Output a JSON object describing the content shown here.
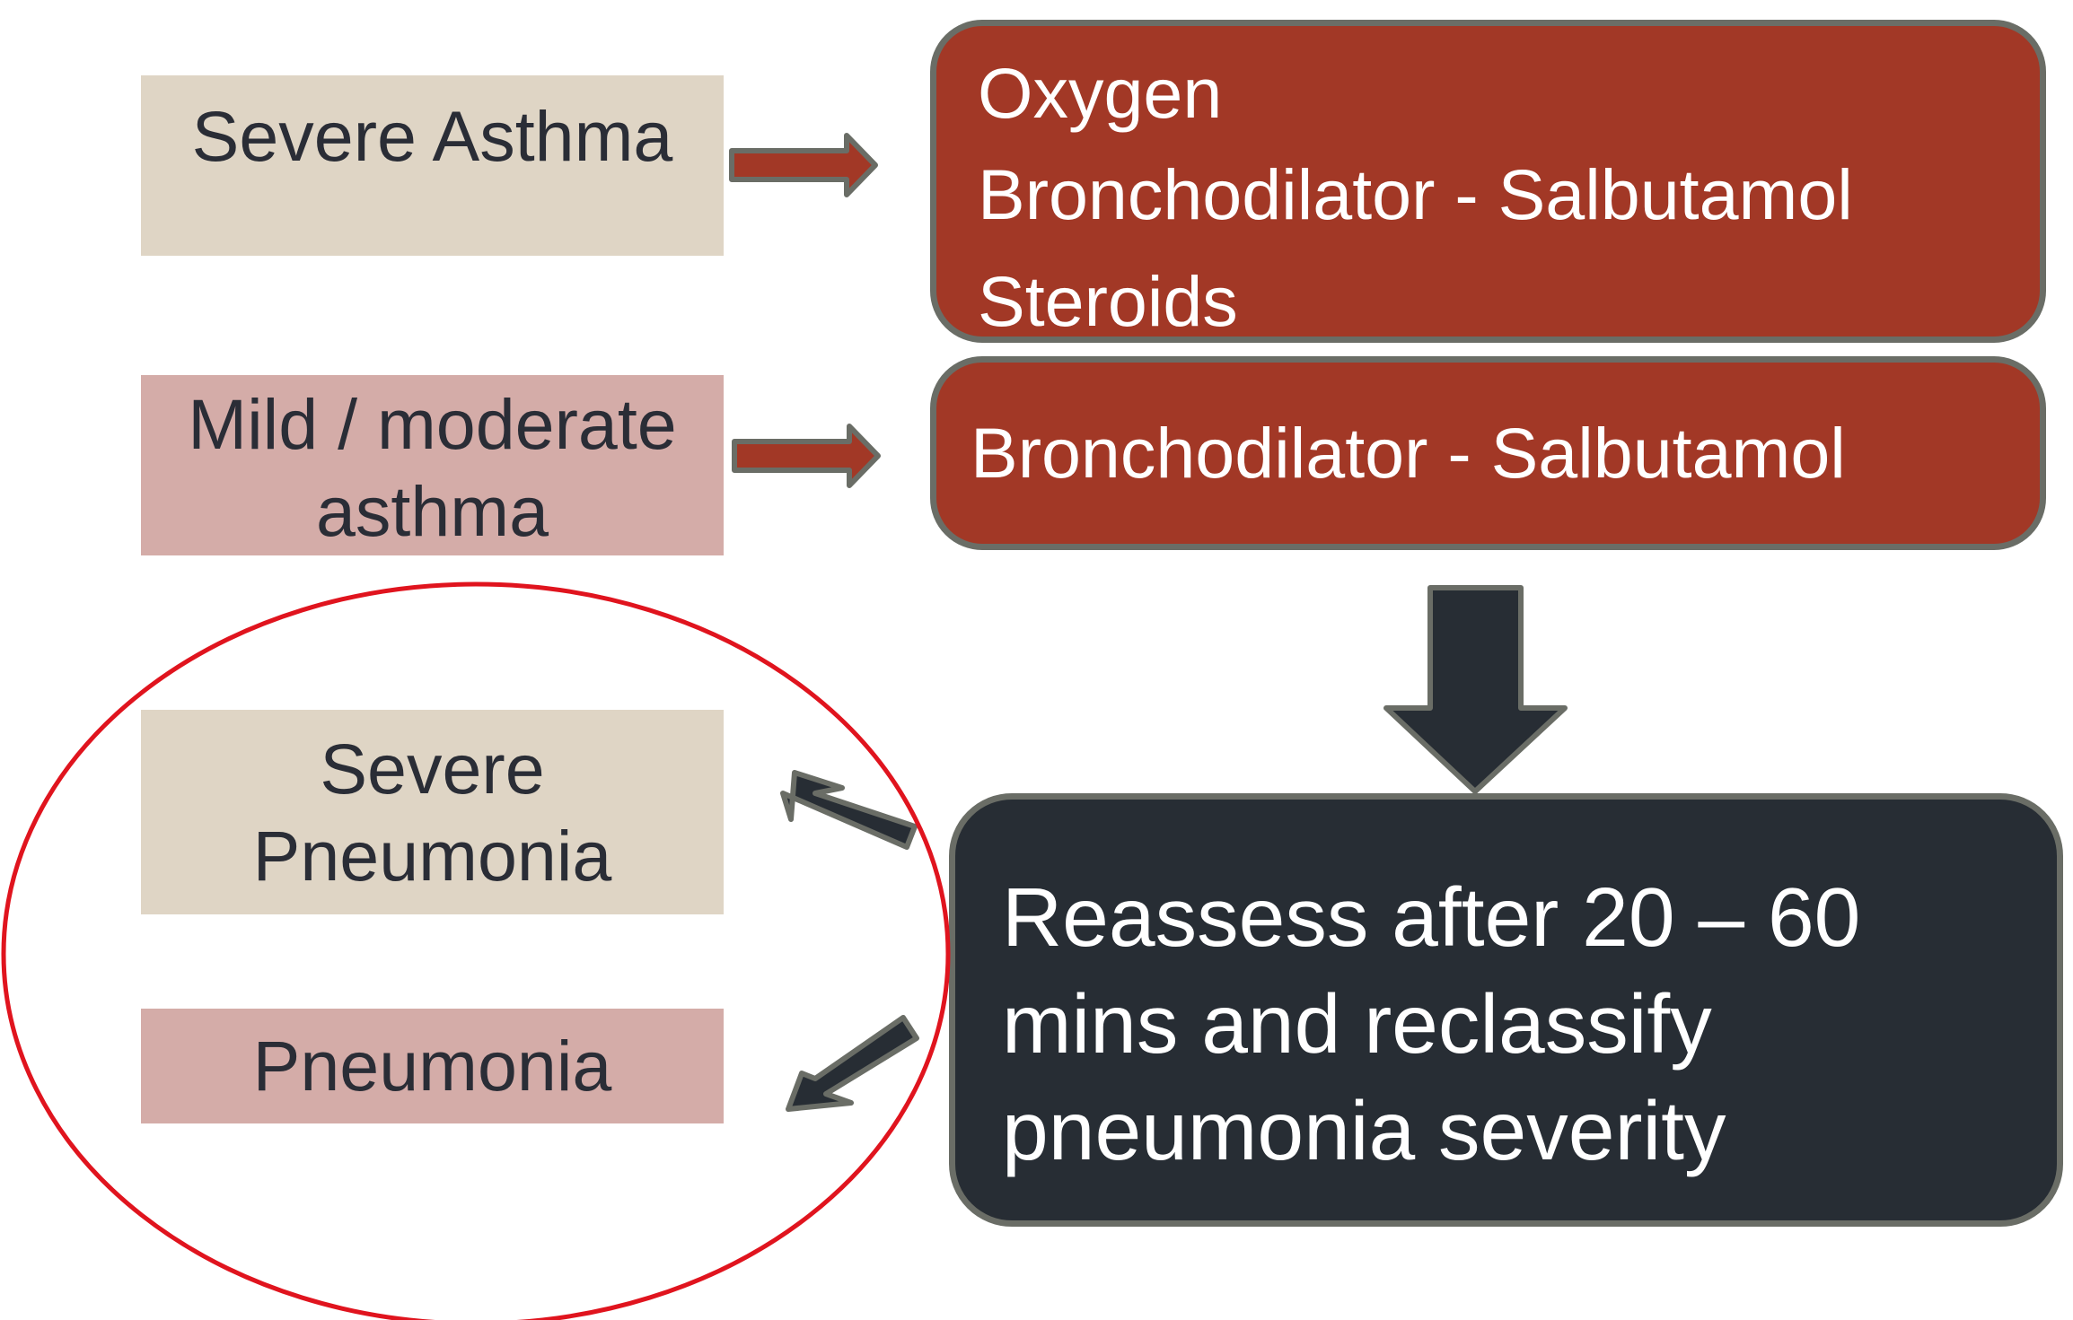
{
  "left_boxes": {
    "severe_asthma": "Severe Asthma",
    "mild_moderate": [
      "Mild / moderate",
      "asthma"
    ],
    "severe_pneumonia": [
      "Severe",
      "Pneumonia"
    ],
    "pneumonia": "Pneumonia"
  },
  "treatments": {
    "severe": [
      "Oxygen",
      "Bronchodilator - Salbutamol",
      "Steroids"
    ],
    "mild": "Bronchodilator - Salbutamol"
  },
  "reassess": [
    "Reassess after 20 – 60",
    "mins and reclassify",
    "pneumonia severity"
  ],
  "colors": {
    "beige": "#dfd5c5",
    "pink": "#d4aca8",
    "treatment_red": "#a23826",
    "dark_panel": "#272d34",
    "panel_border": "#6a6d66",
    "highlight_circle": "#e0141e"
  }
}
